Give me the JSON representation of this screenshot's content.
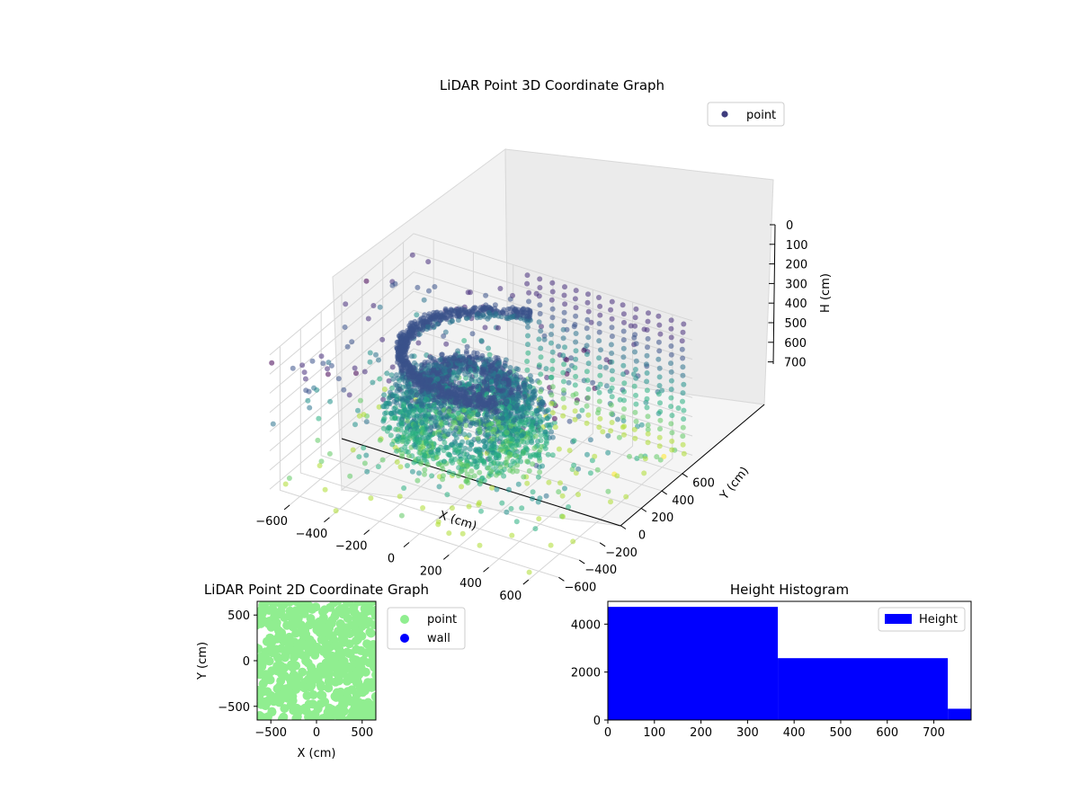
{
  "chart_data": [
    {
      "id": "scatter3d",
      "type": "scatter",
      "projection": "3d",
      "title": "LiDAR Point 3D Coordinate Graph",
      "xlabel": "X (cm)",
      "ylabel": "Y (cm)",
      "zlabel": "H (cm)",
      "xticks": [
        -600,
        -400,
        -200,
        0,
        200,
        400,
        600
      ],
      "yticks": [
        -600,
        -400,
        -200,
        0,
        200,
        400,
        600
      ],
      "zticks": [
        0,
        100,
        200,
        300,
        400,
        500,
        600,
        700
      ],
      "xlim": [
        -700,
        700
      ],
      "ylim": [
        -700,
        700
      ],
      "zlim": [
        0,
        750
      ],
      "z_inverted": true,
      "colormap": "viridis",
      "legend": {
        "label": "point",
        "position": "top-right",
        "color": "#3f3d7e"
      },
      "grid": true,
      "series": [
        {
          "name": "point",
          "description": "dense dome/arc structure near origin",
          "center": [
            0,
            0
          ],
          "radius_range": [
            150,
            380
          ],
          "height_range": [
            150,
            520
          ]
        },
        {
          "name": "point",
          "description": "vertical columns at back edge",
          "x_range": [
            -100,
            700
          ],
          "y_value": 650,
          "height_range": [
            0,
            700
          ]
        },
        {
          "name": "point",
          "description": "scattered ground-level points",
          "x_range": [
            -700,
            700
          ],
          "y_range": [
            -700,
            700
          ],
          "height_range": [
            0,
            750
          ]
        }
      ]
    },
    {
      "id": "scatter2d",
      "type": "scatter",
      "title": "LiDAR Point 2D Coordinate Graph",
      "xlabel": "X (cm)",
      "ylabel": "Y (cm)",
      "xticks": [
        -500,
        0,
        500
      ],
      "yticks": [
        -500,
        0,
        500
      ],
      "xlim": [
        -650,
        650
      ],
      "ylim": [
        -650,
        650
      ],
      "legend": {
        "position": "right",
        "entries": [
          {
            "label": "point",
            "color": "#90ee90"
          },
          {
            "label": "wall",
            "color": "#0000ff"
          }
        ]
      },
      "series": [
        {
          "name": "point",
          "color": "#90ee90",
          "description": "points fill nearly entire square area"
        },
        {
          "name": "wall",
          "color": "#0000ff",
          "points": []
        }
      ]
    },
    {
      "id": "histogram",
      "type": "bar",
      "title": "Height Histogram",
      "xlabel": "",
      "ylabel": "",
      "xticks": [
        0,
        100,
        200,
        300,
        400,
        500,
        600,
        700
      ],
      "yticks": [
        0,
        2000,
        4000
      ],
      "xlim": [
        0,
        780
      ],
      "ylim": [
        0,
        4950
      ],
      "color": "#0000ff",
      "legend": {
        "label": "Height",
        "position": "top-right"
      },
      "bins": [
        {
          "start": 0,
          "end": 365,
          "count": 4720
        },
        {
          "start": 365,
          "end": 730,
          "count": 2580
        },
        {
          "start": 730,
          "end": 780,
          "count": 470
        }
      ]
    }
  ]
}
